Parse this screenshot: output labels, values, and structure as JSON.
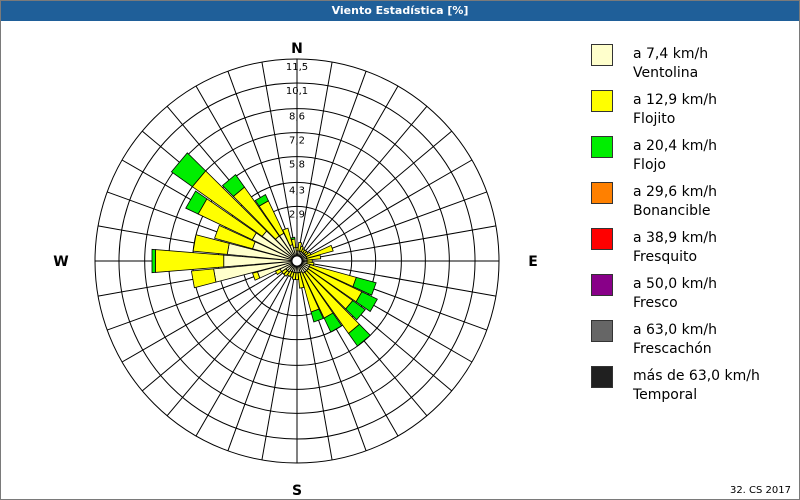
{
  "window": {
    "title": "Viento Estadística [%]",
    "footer": "32. CS 2017"
  },
  "chart_data": {
    "type": "windrose",
    "directions_count": 36,
    "rings": [
      "2,9",
      "4,3",
      "5,8",
      "7,2",
      "8,6",
      "10,1",
      "11,5"
    ],
    "ring_values": [
      2.9,
      4.3,
      5.8,
      7.2,
      8.6,
      10.1,
      11.5
    ],
    "r_max": 11.5,
    "cardinals": {
      "N": "N",
      "E": "E",
      "S": "S",
      "W": "W"
    },
    "bands": [
      {
        "line1": "a 7,4 km/h",
        "line2": "Ventolina",
        "color": "#ffffcc"
      },
      {
        "line1": "a 12,9 km/h",
        "line2": "Flojito",
        "color": "#ffff00"
      },
      {
        "line1": "a 20,4 km/h",
        "line2": "Flojo",
        "color": "#00ee00"
      },
      {
        "line1": "a 29,6 km/h",
        "line2": "Bonancible",
        "color": "#ff8000"
      },
      {
        "line1": "a 38,9 km/h",
        "line2": "Fresquito",
        "color": "#ff0000"
      },
      {
        "line1": "a 50,0 km/h",
        "line2": "Fresco",
        "color": "#880088"
      },
      {
        "line1": "a 63,0 km/h",
        "line2": "Frescachón",
        "color": "#666666"
      },
      {
        "line1": "más de 63,0 km/h",
        "line2": "Temporal",
        "color": "#202020"
      }
    ],
    "sectors": [
      {
        "dir": 0,
        "values": [
          0.3,
          0.2,
          0
        ]
      },
      {
        "dir": 10,
        "values": [
          0.3,
          0.5,
          0
        ]
      },
      {
        "dir": 20,
        "values": [
          0.3,
          0.3,
          0
        ]
      },
      {
        "dir": 30,
        "values": [
          0.3,
          0.2,
          0
        ]
      },
      {
        "dir": 40,
        "values": [
          0.3,
          0.2,
          0
        ]
      },
      {
        "dir": 50,
        "values": [
          0.3,
          0.2,
          0
        ]
      },
      {
        "dir": 60,
        "values": [
          0.3,
          0.3,
          0
        ]
      },
      {
        "dir": 70,
        "values": [
          0.3,
          1.6,
          0
        ]
      },
      {
        "dir": 80,
        "values": [
          0.3,
          0.8,
          0
        ]
      },
      {
        "dir": 90,
        "values": [
          0.3,
          0.3,
          0
        ]
      },
      {
        "dir": 100,
        "values": [
          0.3,
          0.4,
          0
        ]
      },
      {
        "dir": 110,
        "values": [
          0.5,
          2.8,
          1.2
        ]
      },
      {
        "dir": 120,
        "values": [
          0.5,
          3.4,
          1.0
        ]
      },
      {
        "dir": 130,
        "values": [
          0.5,
          3.2,
          0.9
        ]
      },
      {
        "dir": 140,
        "values": [
          0.5,
          4.4,
          0.9
        ]
      },
      {
        "dir": 150,
        "values": [
          0.5,
          2.9,
          0.9
        ]
      },
      {
        "dir": 160,
        "values": [
          0.4,
          2.4,
          0.6
        ]
      },
      {
        "dir": 170,
        "values": [
          0.4,
          0.9,
          0
        ]
      },
      {
        "dir": 180,
        "values": [
          0.4,
          0.4,
          0
        ]
      },
      {
        "dir": 190,
        "values": [
          0.4,
          0.4,
          0
        ]
      },
      {
        "dir": 200,
        "values": [
          0.4,
          0.3,
          0
        ]
      },
      {
        "dir": 210,
        "values": [
          0.4,
          0.3,
          0
        ]
      },
      {
        "dir": 220,
        "values": [
          0.5,
          0.3,
          0
        ]
      },
      {
        "dir": 230,
        "values": [
          0.5,
          0.3,
          0
        ]
      },
      {
        "dir": 240,
        "values": [
          0.8,
          0.3,
          0
        ]
      },
      {
        "dir": 250,
        "values": [
          2.1,
          0.3,
          0
        ]
      },
      {
        "dir": 260,
        "values": [
          4.6,
          1.3,
          0
        ]
      },
      {
        "dir": 270,
        "values": [
          4.0,
          4.0,
          0.2
        ]
      },
      {
        "dir": 280,
        "values": [
          3.8,
          2.0,
          0
        ]
      },
      {
        "dir": 290,
        "values": [
          2.4,
          2.3,
          0
        ]
      },
      {
        "dir": 300,
        "values": [
          2.6,
          3.5,
          0.8
        ]
      },
      {
        "dir": 310,
        "values": [
          2.2,
          5.0,
          1.5
        ]
      },
      {
        "dir": 320,
        "values": [
          1.5,
          3.5,
          0.9
        ]
      },
      {
        "dir": 330,
        "values": [
          1.5,
          2.1,
          0.4
        ]
      },
      {
        "dir": 340,
        "values": [
          0.7,
          1.0,
          0
        ]
      },
      {
        "dir": 350,
        "values": [
          0.5,
          0.5,
          0.1
        ]
      }
    ]
  }
}
